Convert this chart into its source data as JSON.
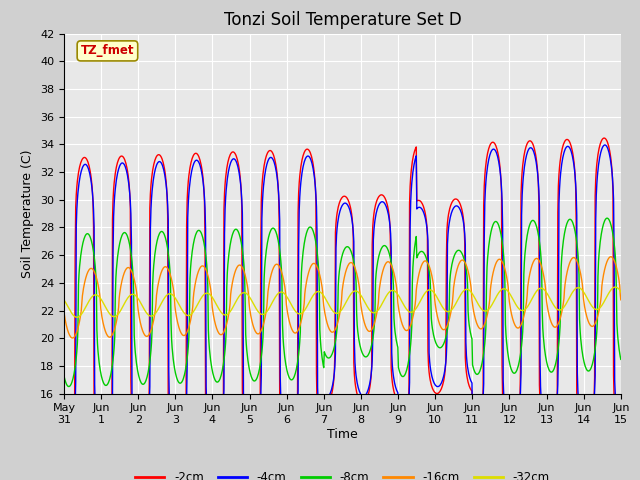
{
  "title": "Tonzi Soil Temperature Set D",
  "xlabel": "Time",
  "ylabel": "Soil Temperature (C)",
  "ylim": [
    16,
    42
  ],
  "xlim": [
    0,
    15
  ],
  "yticks": [
    16,
    18,
    20,
    22,
    24,
    26,
    28,
    30,
    32,
    34,
    36,
    38,
    40,
    42
  ],
  "xtick_labels": [
    "May\n31",
    "Jun\n1",
    "Jun\n2",
    "Jun\n3",
    "Jun\n4",
    "Jun\n5",
    "Jun\n6",
    "Jun\n7",
    "Jun\n8",
    "Jun\n9",
    "Jun\n10",
    "Jun\n11",
    "Jun\n12",
    "Jun\n13",
    "Jun\n14",
    "Jun\n15"
  ],
  "xtick_positions": [
    0,
    1,
    2,
    3,
    4,
    5,
    6,
    7,
    8,
    9,
    10,
    11,
    12,
    13,
    14,
    15
  ],
  "legend_label": "TZ_fmet",
  "series_labels": [
    "-2cm",
    "-4cm",
    "-8cm",
    "-16cm",
    "-32cm"
  ],
  "series_colors": [
    "#ff0000",
    "#0000ff",
    "#00cc00",
    "#ff8800",
    "#dddd00"
  ],
  "bg_color": "#e8e8e8",
  "grid_color": "#ffffff",
  "title_fontsize": 12,
  "axis_label_fontsize": 9,
  "tick_fontsize": 8
}
